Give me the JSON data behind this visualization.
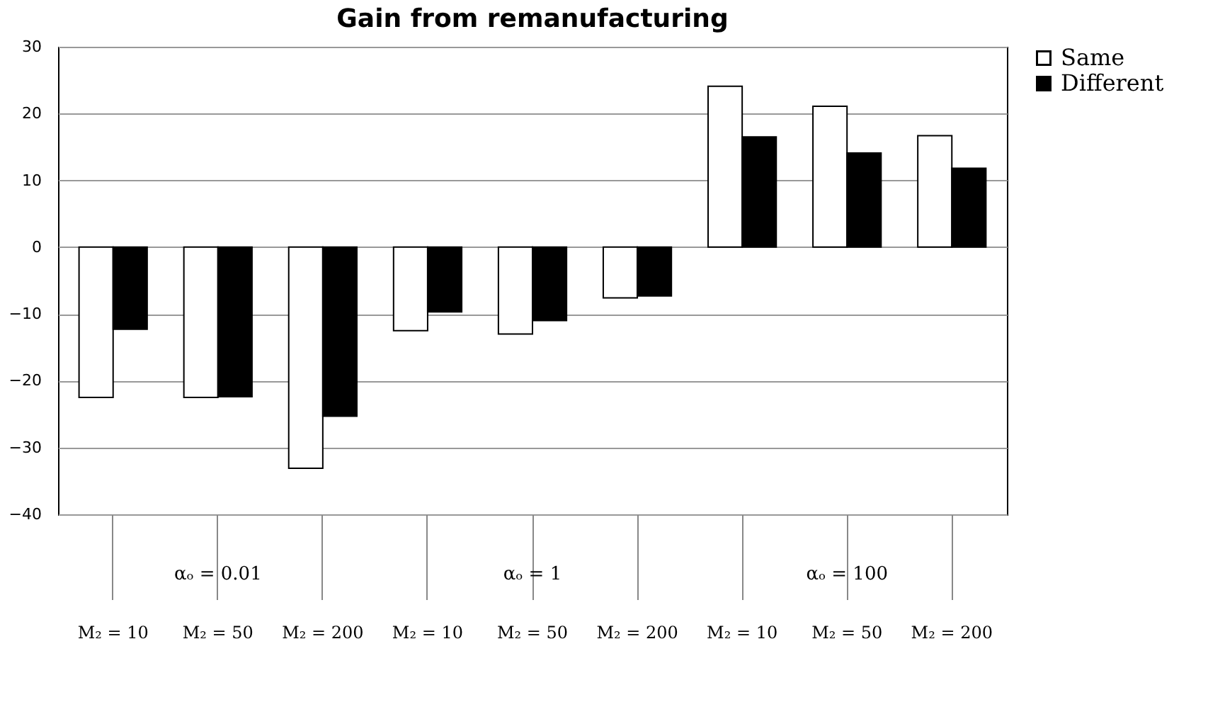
{
  "chart_data": {
    "type": "bar",
    "title": "Gain from remanufacturing",
    "categories": [
      "M₂ = 10",
      "M₂ = 50",
      "M₂ = 200",
      "M₂ = 10",
      "M₂ = 50",
      "M₂ = 200",
      "M₂ = 10",
      "M₂ = 50",
      "M₂ = 200"
    ],
    "series": [
      {
        "name": "Same",
        "color": "#ffffff",
        "values": [
          -22.5,
          -22.5,
          -33.1,
          -12.5,
          -13.0,
          -7.6,
          24.1,
          21.1,
          16.7
        ]
      },
      {
        "name": "Different",
        "color": "#000000",
        "values": [
          -12.3,
          -22.4,
          -25.3,
          -9.7,
          -11.0,
          -7.3,
          16.5,
          14.1,
          11.8
        ]
      }
    ],
    "annotations": [
      "αₒ = 0.01",
      "αₒ = 1",
      "αₒ = 100"
    ],
    "ylim": [
      -40,
      30
    ],
    "yticks": [
      -40,
      -30,
      -20,
      -10,
      0,
      10,
      20,
      30
    ],
    "grid": "y",
    "legend": "right"
  }
}
